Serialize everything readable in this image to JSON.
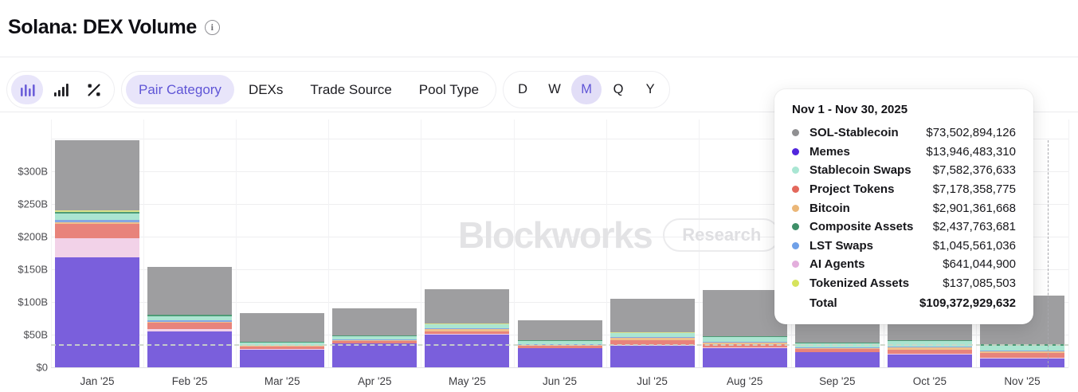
{
  "header": {
    "title": "Solana: DEX Volume"
  },
  "toolbar": {
    "chart_type_group": [
      {
        "name": "column-chart-icon",
        "active": true
      },
      {
        "name": "ascending-bars-icon",
        "active": false
      },
      {
        "name": "percent-change-icon",
        "active": false
      }
    ],
    "tabs": [
      {
        "label": "Pair Category",
        "active": true
      },
      {
        "label": "DEXs",
        "active": false
      },
      {
        "label": "Trade Source",
        "active": false
      },
      {
        "label": "Pool Type",
        "active": false
      }
    ],
    "ranges": [
      {
        "label": "D",
        "active": false
      },
      {
        "label": "W",
        "active": false
      },
      {
        "label": "M",
        "active": true
      },
      {
        "label": "Q",
        "active": false
      },
      {
        "label": "Y",
        "active": false
      }
    ]
  },
  "watermark": {
    "brand": "Blockworks",
    "button_label": "Research"
  },
  "tooltip": {
    "title": "Nov 1 - Nov 30, 2025",
    "rows": [
      {
        "label": "SOL-Stablecoin",
        "value": "$73,502,894,126",
        "dot": "#909092"
      },
      {
        "label": "Memes",
        "value": "$13,946,483,310",
        "dot": "#5126DD"
      },
      {
        "label": "Stablecoin Swaps",
        "value": "$7,582,376,633",
        "dot": "#A9E6D3"
      },
      {
        "label": "Project Tokens",
        "value": "$7,178,358,775",
        "dot": "#E3685C"
      },
      {
        "label": "Bitcoin",
        "value": "$2,901,361,668",
        "dot": "#EBB778"
      },
      {
        "label": "Composite Assets",
        "value": "$2,437,763,681",
        "dot": "#3E8F68"
      },
      {
        "label": "LST Swaps",
        "value": "$1,045,561,036",
        "dot": "#6FA0E8"
      },
      {
        "label": "AI Agents",
        "value": "$641,044,900",
        "dot": "#E3AEDC"
      },
      {
        "label": "Tokenized Assets",
        "value": "$137,085,503",
        "dot": "#D6E35C"
      }
    ],
    "total_label": "Total",
    "total_value": "$109,372,929,632"
  },
  "chart_data": {
    "type": "bar",
    "stacked": true,
    "unit": "USD billions",
    "categories": [
      "Jan '25",
      "Feb '25",
      "Mar '25",
      "Apr '25",
      "May '25",
      "Jun '25",
      "Jul '25",
      "Aug '25",
      "Sep '25",
      "Oct '25",
      "Nov '25"
    ],
    "series": [
      {
        "name": "Memes",
        "color": "#7A5FDC",
        "values": [
          168,
          55,
          27,
          36,
          50,
          29,
          33,
          29,
          23,
          20,
          13.95
        ]
      },
      {
        "name": "AI Agents",
        "color": "#F2D2E8",
        "values": [
          30,
          4,
          1,
          1,
          1,
          0.8,
          1,
          1,
          0.7,
          0.6,
          0.64
        ]
      },
      {
        "name": "Project Tokens",
        "color": "#E8837B",
        "values": [
          21,
          9,
          3.5,
          3,
          4,
          3,
          8,
          5,
          4,
          6,
          7.18
        ]
      },
      {
        "name": "Bitcoin",
        "color": "#EFC08C",
        "values": [
          3,
          1.5,
          1,
          1.5,
          3,
          1.5,
          3,
          3,
          2,
          4,
          2.9
        ]
      },
      {
        "name": "LST Swaps",
        "color": "#84A6E4",
        "values": [
          4,
          2,
          1,
          1,
          1.5,
          1,
          1,
          1.2,
          1,
          1.2,
          1.05
        ]
      },
      {
        "name": "Stablecoin Swaps",
        "color": "#ABE5D1",
        "values": [
          10,
          7,
          4,
          5,
          6,
          5,
          6,
          7,
          6,
          8,
          7.58
        ]
      },
      {
        "name": "Composite Assets",
        "color": "#4E9B76",
        "values": [
          2,
          1.5,
          1,
          1,
          1,
          1,
          1,
          1.3,
          1.5,
          2,
          2.44
        ]
      },
      {
        "name": "Tokenized Assets",
        "color": "#D9E38A",
        "values": [
          2,
          0.5,
          0.3,
          0.3,
          0.5,
          0.3,
          0.3,
          0.3,
          0.2,
          0.2,
          0.14
        ]
      },
      {
        "name": "SOL-Stablecoin",
        "color": "#9E9EA0",
        "values": [
          108,
          73,
          44,
          41,
          53,
          30,
          52,
          70,
          57,
          93,
          73.5
        ]
      }
    ],
    "y_ticks": [
      "$0",
      "$50B",
      "$100B",
      "$150B",
      "$200B",
      "$250B",
      "$300B"
    ],
    "ylim": [
      0,
      350
    ],
    "grid": true,
    "reference_line_b": 35,
    "hovered_category": "Nov '25"
  }
}
